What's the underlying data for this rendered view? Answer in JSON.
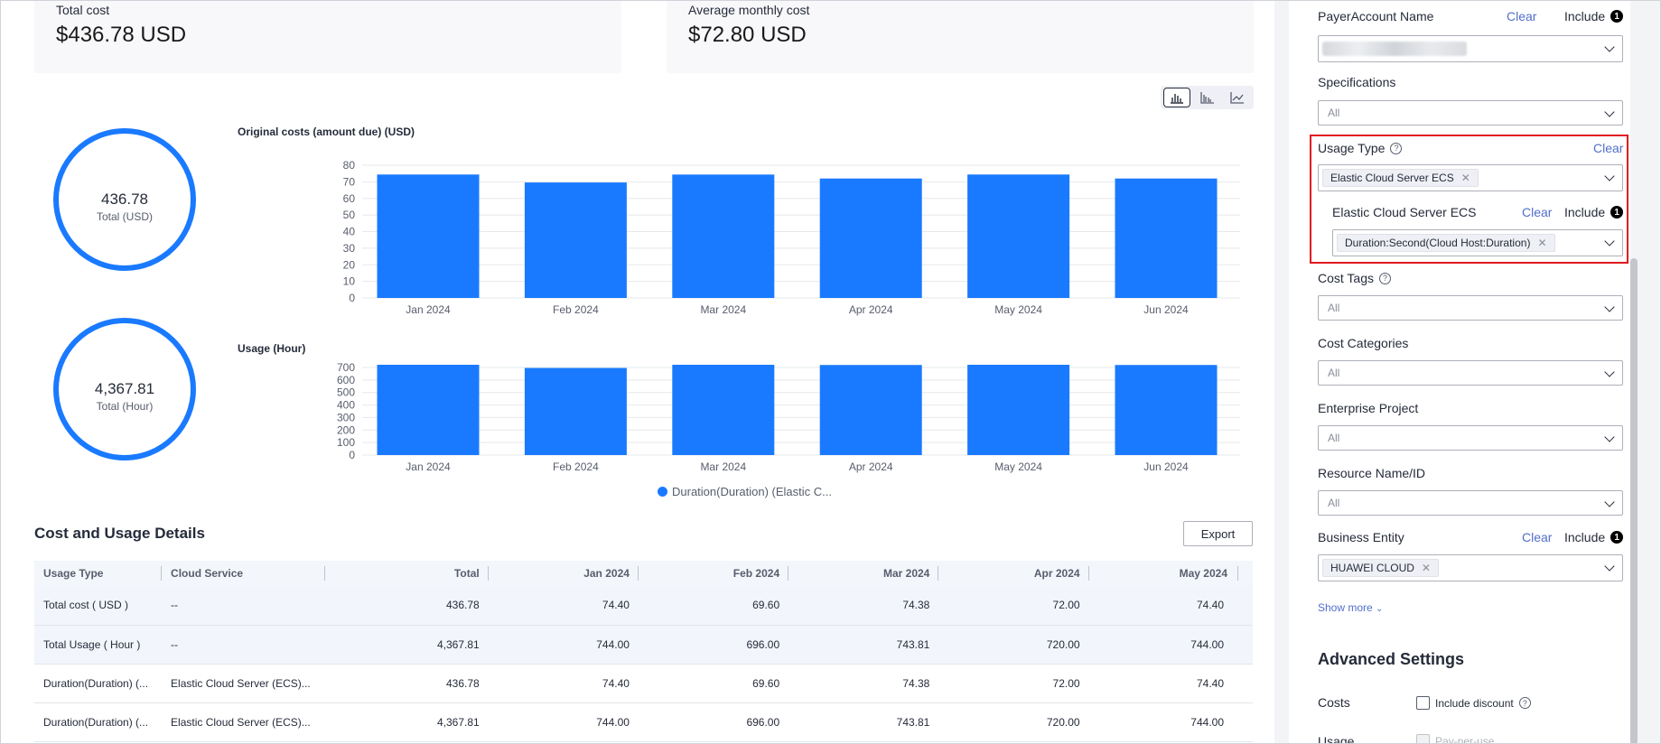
{
  "summary": {
    "total_cost_label": "Total cost",
    "total_cost_value": "$436.78 USD",
    "avg_monthly_label": "Average monthly cost",
    "avg_monthly_value": "$72.80 USD"
  },
  "view_switch": {
    "items": [
      "bar-chart-icon",
      "grouped-bar-icon",
      "line-chart-icon"
    ],
    "active": "bar-chart-icon"
  },
  "rings": [
    {
      "value": "436.78",
      "label": "Total (USD)"
    },
    {
      "value": "4,367.81",
      "label": "Total (Hour)"
    }
  ],
  "chart_data": [
    {
      "type": "bar",
      "title": "Original costs (amount due) (USD)",
      "categories": [
        "Jan 2024",
        "Feb 2024",
        "Mar 2024",
        "Apr 2024",
        "May 2024",
        "Jun 2024"
      ],
      "values": [
        74.4,
        69.6,
        74.38,
        72.0,
        74.4,
        72.0
      ],
      "ylim": [
        0,
        80
      ],
      "yticks": [
        0,
        10,
        20,
        30,
        40,
        50,
        60,
        70,
        80
      ],
      "grid": true,
      "color": "#1a7aff"
    },
    {
      "type": "bar",
      "title": "Usage (Hour)",
      "categories": [
        "Jan 2024",
        "Feb 2024",
        "Mar 2024",
        "Apr 2024",
        "May 2024",
        "Jun 2024"
      ],
      "values": [
        744.0,
        696.0,
        743.81,
        720.0,
        744.0,
        720.0
      ],
      "ylim": [
        0,
        700
      ],
      "yticks": [
        0,
        100,
        200,
        300,
        400,
        500,
        600,
        700
      ],
      "grid": true,
      "color": "#1a7aff",
      "series_legend": "Duration(Duration) (Elastic C...",
      "legend_position": "bottom"
    }
  ],
  "details": {
    "title": "Cost and Usage Details",
    "export_label": "Export",
    "columns": [
      "Usage Type",
      "Cloud Service",
      "Total",
      "Jan 2024",
      "Feb 2024",
      "Mar 2024",
      "Apr 2024",
      "May 2024"
    ],
    "rows": [
      [
        "Total cost ( USD )",
        "--",
        "436.78",
        "74.40",
        "69.60",
        "74.38",
        "72.00",
        "74.40"
      ],
      [
        "Total Usage ( Hour )",
        "--",
        "4,367.81",
        "744.00",
        "696.00",
        "743.81",
        "720.00",
        "744.00"
      ],
      [
        "Duration(Duration) (...",
        "Elastic Cloud Server (ECS)...",
        "436.78",
        "74.40",
        "69.60",
        "74.38",
        "72.00",
        "74.40"
      ],
      [
        "Duration(Duration) (...",
        "Elastic Cloud Server (ECS)...",
        "4,367.81",
        "744.00",
        "696.00",
        "743.81",
        "720.00",
        "744.00"
      ]
    ]
  },
  "filters": {
    "payer": {
      "label": "PayerAccount Name",
      "clear": "Clear",
      "include": "Include",
      "count": "1"
    },
    "specifications": {
      "label": "Specifications",
      "value": "All"
    },
    "usage_type": {
      "label": "Usage Type",
      "clear": "Clear",
      "tag": "Elastic Cloud Server ECS",
      "sub_label": "Elastic Cloud Server ECS",
      "sub_clear": "Clear",
      "sub_include": "Include",
      "sub_count": "1",
      "sub_tag": "Duration:Second(Cloud Host:Duration)"
    },
    "cost_tags": {
      "label": "Cost Tags",
      "value": "All"
    },
    "cost_categories": {
      "label": "Cost Categories",
      "value": "All"
    },
    "enterprise_project": {
      "label": "Enterprise Project",
      "value": "All"
    },
    "resource": {
      "label": "Resource Name/ID",
      "value": "All"
    },
    "business_entity": {
      "label": "Business Entity",
      "clear": "Clear",
      "include": "Include",
      "count": "1",
      "tag": "HUAWEI CLOUD"
    },
    "show_more": "Show more",
    "advanced_title": "Advanced Settings",
    "costs_label": "Costs",
    "include_discount": "Include discount",
    "usage_label": "Usage",
    "pay_per_use": "Pay-per-use"
  }
}
